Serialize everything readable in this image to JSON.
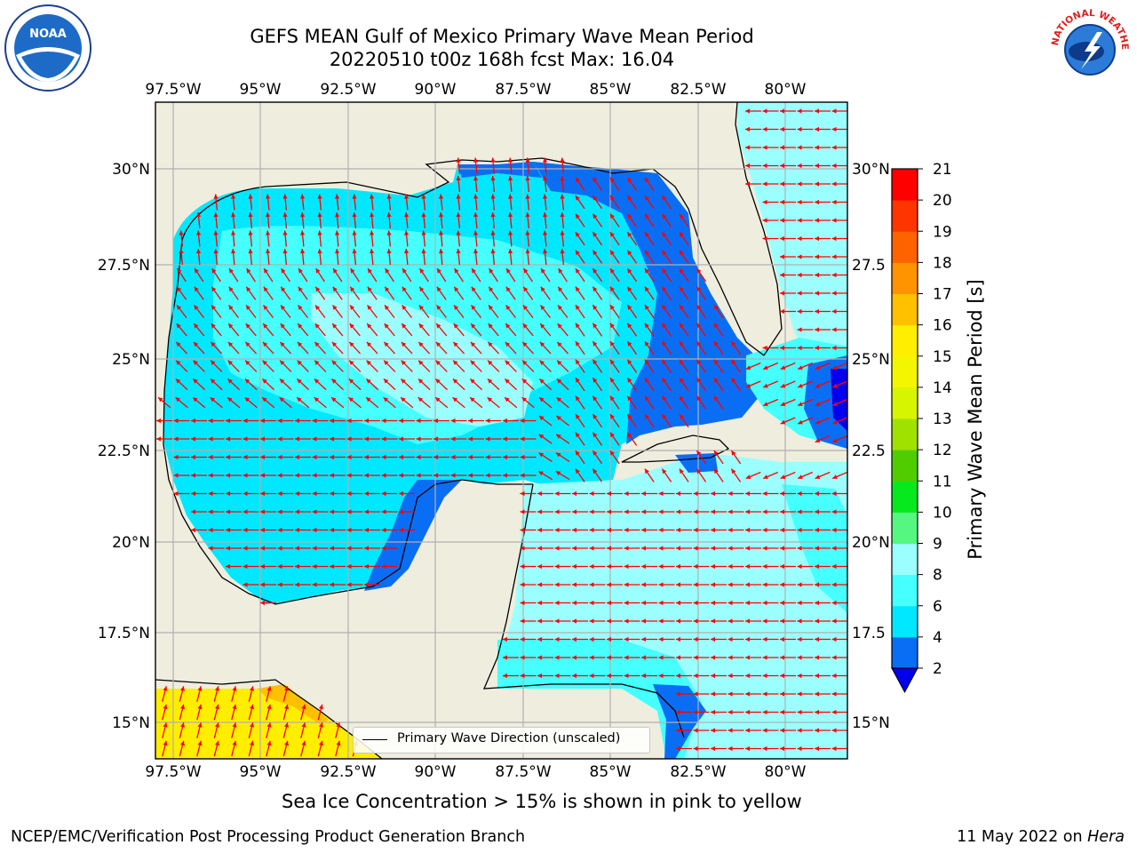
{
  "title": {
    "line1": "GEFS MEAN Gulf of Mexico Primary Wave Mean Period",
    "line2": "20220510 t00z 168h fcst   Max: 16.04"
  },
  "map": {
    "lon_labels": [
      "97.5°W",
      "95°W",
      "92.5°W",
      "90°W",
      "87.5°W",
      "85°W",
      "82.5°W",
      "80°W"
    ],
    "lat_labels": [
      "30°N",
      "27.5°N",
      "25°N",
      "22.5°N",
      "20°N",
      "17.5°N",
      "15°N"
    ],
    "lat_labels_right": [
      "30°N",
      "27.5",
      "25°N",
      "22.5",
      "20°N",
      "17.5",
      "15°N"
    ],
    "legend_label": "Primary Wave Direction (unscaled)",
    "land_color": "#efedde",
    "arrow_color": "#ff0000"
  },
  "colorbar": {
    "label": "Primary Wave Mean Period [s]",
    "ticks": [
      "2",
      "4",
      "6",
      "8",
      "9",
      "10",
      "11",
      "12",
      "13",
      "14",
      "15",
      "16",
      "17",
      "18",
      "19",
      "20",
      "21"
    ],
    "colors": [
      "#0a6ef5",
      "#00e8ff",
      "#46ffff",
      "#9cffff",
      "#55f780",
      "#08e81e",
      "#50cd00",
      "#a0e100",
      "#d6f500",
      "#f4f500",
      "#ffee00",
      "#ffc000",
      "#ff9400",
      "#ff6300",
      "#ff3500",
      "#ff0000"
    ],
    "under_color": "#0000ee"
  },
  "footer": {
    "note": "Sea Ice Concentration > 15% is shown in pink to yellow",
    "credit_left": "NCEP/EMC/Verification Post Processing Product Generation Branch",
    "credit_right_date": "11 May 2022 on ",
    "credit_right_host": "Hera"
  },
  "logos": {
    "noaa_text": "NOAA",
    "nws_text": "NATIONAL WEATHER SERVICE"
  }
}
